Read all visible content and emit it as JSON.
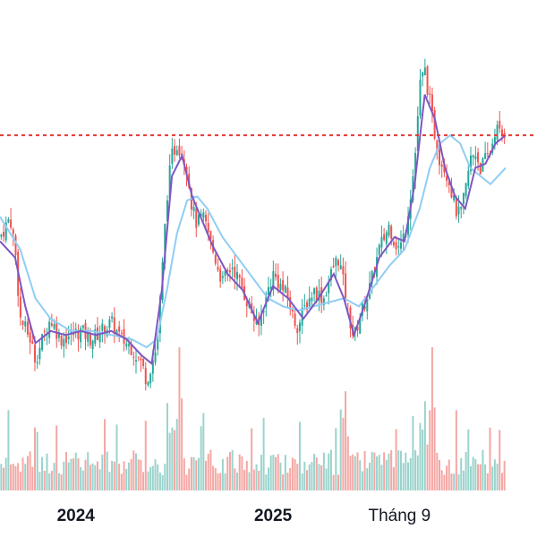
{
  "chart_data": {
    "type": "candlestick",
    "title": "",
    "xlabel": "",
    "ylabel": "",
    "grid": false,
    "x_tick_labels": [
      {
        "label": "2024",
        "date": "2024-01",
        "bold": true
      },
      {
        "label": "2025",
        "date": "2025-01",
        "bold": true
      },
      {
        "label": "Tháng 9",
        "date": "2025-09",
        "bold": false
      }
    ],
    "reference_line": {
      "style": "dashed",
      "value": 100
    },
    "ylim": [
      30,
      120
    ],
    "volume_ylim": [
      0,
      140
    ],
    "x_range": [
      0,
      100
    ],
    "x_ticks": [
      15,
      54,
      79
    ],
    "price_points": [
      [
        0,
        75
      ],
      [
        2,
        80
      ],
      [
        3,
        72
      ],
      [
        4,
        55
      ],
      [
        6,
        50
      ],
      [
        7,
        45
      ],
      [
        9,
        52
      ],
      [
        10,
        55
      ],
      [
        12,
        50
      ],
      [
        14,
        51
      ],
      [
        16,
        52
      ],
      [
        18,
        50
      ],
      [
        20,
        52
      ],
      [
        22,
        54
      ],
      [
        24,
        50
      ],
      [
        26,
        48
      ],
      [
        28,
        44
      ],
      [
        29,
        40
      ],
      [
        31,
        48
      ],
      [
        32,
        65
      ],
      [
        33,
        85
      ],
      [
        34,
        95
      ],
      [
        35,
        98
      ],
      [
        36,
        96
      ],
      [
        37,
        92
      ],
      [
        38,
        82
      ],
      [
        39,
        78
      ],
      [
        40,
        80
      ],
      [
        41,
        77
      ],
      [
        42,
        72
      ],
      [
        44,
        64
      ],
      [
        46,
        68
      ],
      [
        48,
        62
      ],
      [
        50,
        56
      ],
      [
        51,
        52
      ],
      [
        52,
        58
      ],
      [
        54,
        66
      ],
      [
        55,
        64
      ],
      [
        57,
        60
      ],
      [
        58,
        55
      ],
      [
        59,
        53
      ],
      [
        60,
        57
      ],
      [
        62,
        62
      ],
      [
        64,
        60
      ],
      [
        66,
        68
      ],
      [
        67,
        70
      ],
      [
        68,
        63
      ],
      [
        69,
        56
      ],
      [
        70,
        50
      ],
      [
        71,
        55
      ],
      [
        73,
        62
      ],
      [
        75,
        72
      ],
      [
        77,
        78
      ],
      [
        78,
        74
      ],
      [
        79,
        72
      ],
      [
        80,
        76
      ],
      [
        81,
        84
      ],
      [
        82,
        93
      ],
      [
        83,
        112
      ],
      [
        84,
        116
      ],
      [
        85,
        108
      ],
      [
        86,
        100
      ],
      [
        87,
        94
      ],
      [
        88,
        92
      ],
      [
        89,
        88
      ],
      [
        90,
        82
      ],
      [
        91,
        80
      ],
      [
        92,
        86
      ],
      [
        93,
        94
      ],
      [
        94,
        96
      ],
      [
        95,
        92
      ],
      [
        96,
        94
      ],
      [
        97,
        96
      ],
      [
        98,
        102
      ],
      [
        99,
        100
      ],
      [
        100,
        101
      ]
    ],
    "ma_fast": [
      [
        0,
        74
      ],
      [
        3,
        70
      ],
      [
        5,
        58
      ],
      [
        7,
        49
      ],
      [
        10,
        52
      ],
      [
        13,
        51
      ],
      [
        16,
        52
      ],
      [
        19,
        51
      ],
      [
        22,
        52
      ],
      [
        25,
        50
      ],
      [
        28,
        46
      ],
      [
        30,
        44
      ],
      [
        32,
        62
      ],
      [
        34,
        90
      ],
      [
        36,
        95
      ],
      [
        38,
        85
      ],
      [
        40,
        79
      ],
      [
        42,
        73
      ],
      [
        45,
        66
      ],
      [
        48,
        62
      ],
      [
        51,
        54
      ],
      [
        54,
        63
      ],
      [
        57,
        60
      ],
      [
        60,
        55
      ],
      [
        63,
        60
      ],
      [
        66,
        66
      ],
      [
        68,
        60
      ],
      [
        70,
        51
      ],
      [
        72,
        58
      ],
      [
        75,
        70
      ],
      [
        78,
        75
      ],
      [
        80,
        74
      ],
      [
        82,
        88
      ],
      [
        84,
        110
      ],
      [
        86,
        104
      ],
      [
        88,
        92
      ],
      [
        90,
        85
      ],
      [
        92,
        82
      ],
      [
        94,
        92
      ],
      [
        96,
        93
      ],
      [
        98,
        98
      ],
      [
        100,
        100
      ]
    ],
    "ma_slow": [
      [
        0,
        80
      ],
      [
        4,
        72
      ],
      [
        7,
        60
      ],
      [
        10,
        55
      ],
      [
        14,
        52
      ],
      [
        18,
        52
      ],
      [
        22,
        51
      ],
      [
        26,
        50
      ],
      [
        29,
        48
      ],
      [
        31,
        50
      ],
      [
        33,
        62
      ],
      [
        35,
        76
      ],
      [
        37,
        84
      ],
      [
        39,
        85
      ],
      [
        41,
        82
      ],
      [
        44,
        75
      ],
      [
        47,
        70
      ],
      [
        50,
        65
      ],
      [
        53,
        60
      ],
      [
        56,
        58
      ],
      [
        59,
        57
      ],
      [
        62,
        58
      ],
      [
        65,
        59
      ],
      [
        68,
        60
      ],
      [
        71,
        58
      ],
      [
        74,
        63
      ],
      [
        77,
        68
      ],
      [
        80,
        72
      ],
      [
        83,
        82
      ],
      [
        85,
        92
      ],
      [
        87,
        98
      ],
      [
        89,
        100
      ],
      [
        91,
        98
      ],
      [
        93,
        92
      ],
      [
        95,
        90
      ],
      [
        97,
        88
      ],
      [
        100,
        92
      ]
    ],
    "series_colors": {
      "up": "#26a69a",
      "down": "#ef5350",
      "ma_fast": "#7e57c2",
      "ma_slow": "#90cdf4",
      "reference": "#e53935",
      "volume_up": "#9bd3cc",
      "volume_down": "#f4a7a4"
    }
  }
}
